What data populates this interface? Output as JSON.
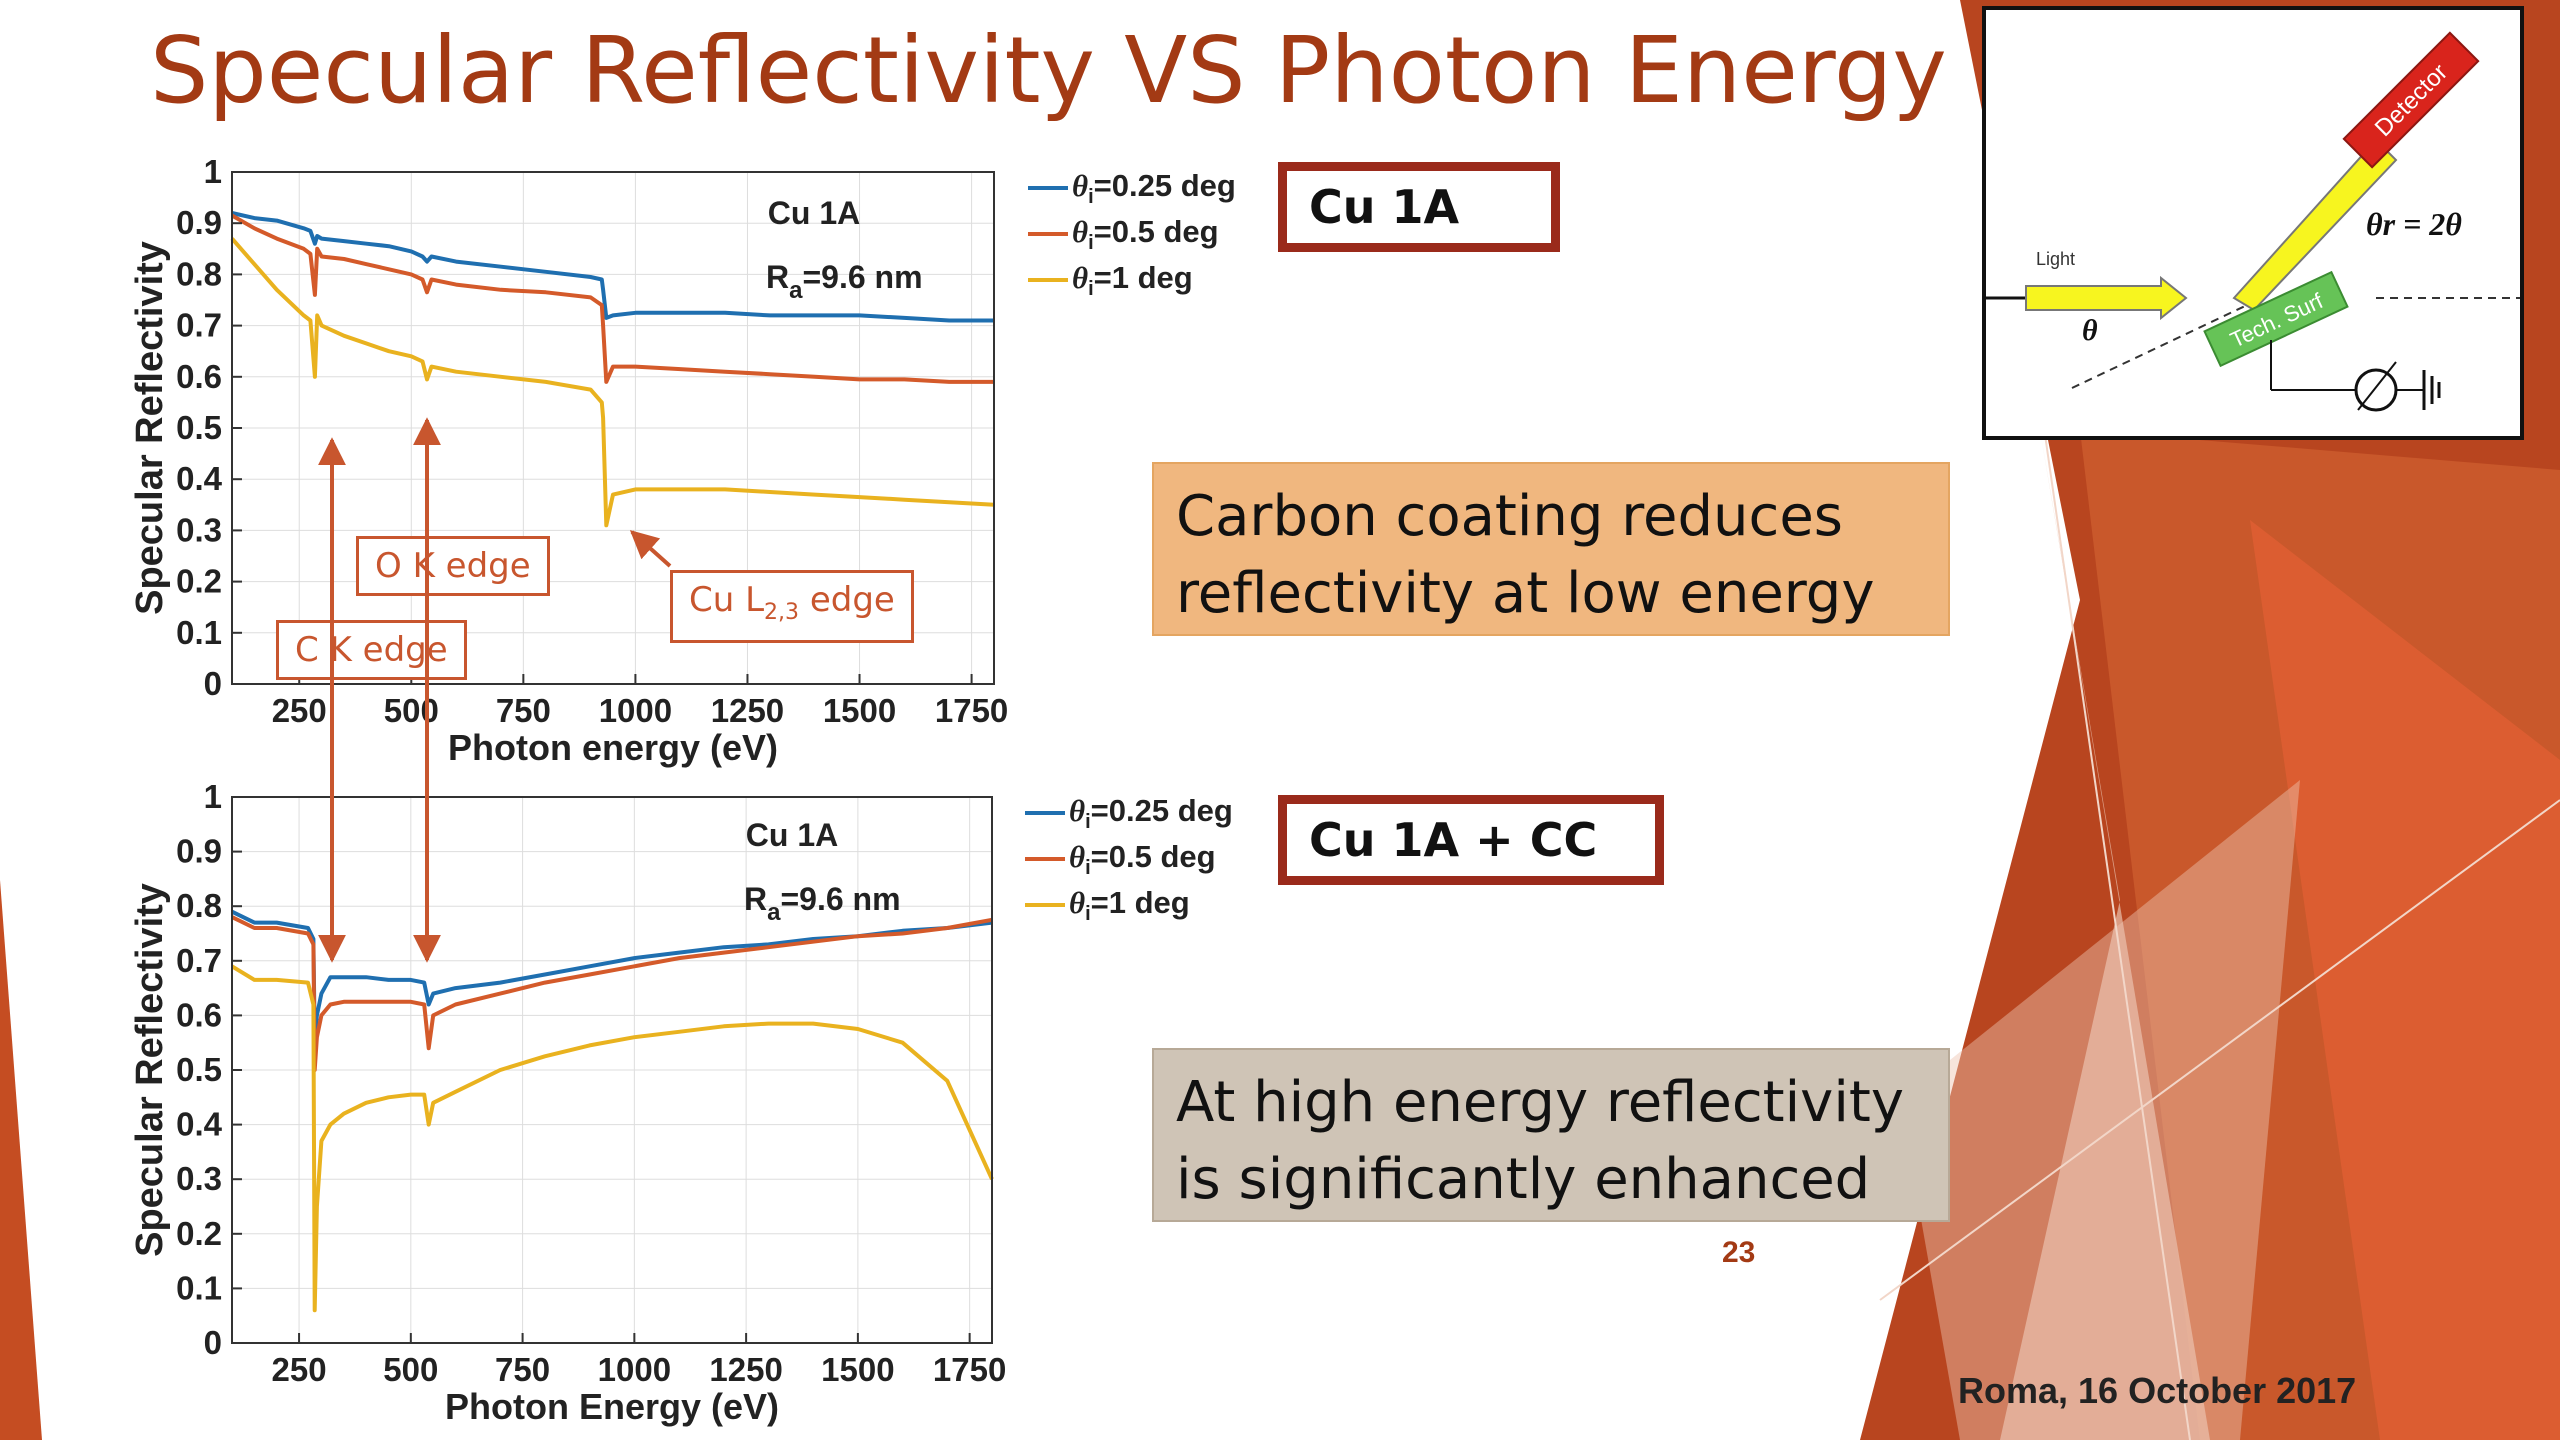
{
  "slide": {
    "title": "Specular Reflectivity VS Photon Energy",
    "page_number": "23",
    "footer_date": "Roma, 16 October 2017",
    "accent_color": "#a33a14"
  },
  "samples": {
    "top": "Cu 1A",
    "bottom": "Cu 1A + CC"
  },
  "callouts": {
    "top": {
      "line1": "Carbon coating reduces",
      "line2": "reflectivity at low energy",
      "color": "#f0b77f"
    },
    "bottom": {
      "line1": "At high energy reflectivity",
      "line2": "is significantly enhanced",
      "color": "#cfc4b6"
    }
  },
  "edge_labels": {
    "c_k": "C K edge",
    "o_k": "O K edge",
    "cu_l_main": "Cu L",
    "cu_l_sub": "2,3",
    "cu_l_suffix": " edge"
  },
  "diagram": {
    "light": "Light",
    "detector": "Detector",
    "surface": "Tech. Surf",
    "theta": "θ",
    "theta_r": "θr = 2θ"
  },
  "chart_data": [
    {
      "type": "line",
      "annotation_sample": "Cu 1A",
      "annotation_ra_main": "R",
      "annotation_ra_sub": "a",
      "annotation_ra_value": "=9.6 nm",
      "xlabel": "Photon energy (eV)",
      "ylabel": "Specular Reflectivity",
      "xlim": [
        100,
        1800
      ],
      "ylim": [
        0,
        1
      ],
      "xticks": [
        250,
        500,
        750,
        1000,
        1250,
        1500,
        1750
      ],
      "yticks": [
        0,
        0.1,
        0.2,
        0.3,
        0.4,
        0.5,
        0.6,
        0.7,
        0.8,
        0.9,
        1
      ],
      "grid": true,
      "legend": "outside-right",
      "x": [
        100,
        150,
        200,
        260,
        275,
        285,
        290,
        300,
        350,
        400,
        450,
        500,
        525,
        535,
        545,
        600,
        700,
        800,
        900,
        925,
        928,
        935,
        950,
        1000,
        1100,
        1200,
        1300,
        1400,
        1500,
        1600,
        1700,
        1800
      ],
      "series": [
        {
          "name_theta": "θ",
          "name_sub": "i",
          "name_rest": "=0.25 deg",
          "color": "#1f6fb0",
          "values": [
            0.92,
            0.91,
            0.905,
            0.89,
            0.885,
            0.86,
            0.875,
            0.87,
            0.865,
            0.86,
            0.855,
            0.845,
            0.835,
            0.825,
            0.835,
            0.825,
            0.815,
            0.805,
            0.795,
            0.79,
            0.77,
            0.715,
            0.72,
            0.725,
            0.725,
            0.725,
            0.72,
            0.72,
            0.72,
            0.715,
            0.71,
            0.71
          ]
        },
        {
          "name_theta": "θ",
          "name_sub": "i",
          "name_rest": "=0.5 deg",
          "color": "#d45a2a",
          "values": [
            0.915,
            0.89,
            0.87,
            0.85,
            0.84,
            0.76,
            0.85,
            0.835,
            0.83,
            0.82,
            0.81,
            0.8,
            0.79,
            0.765,
            0.79,
            0.78,
            0.77,
            0.765,
            0.755,
            0.74,
            0.7,
            0.59,
            0.62,
            0.62,
            0.615,
            0.61,
            0.605,
            0.6,
            0.595,
            0.595,
            0.59,
            0.59
          ]
        },
        {
          "name_theta": "θ",
          "name_sub": "i",
          "name_rest": "=1 deg",
          "color": "#e9b21f",
          "values": [
            0.87,
            0.82,
            0.77,
            0.72,
            0.71,
            0.6,
            0.72,
            0.7,
            0.68,
            0.665,
            0.65,
            0.64,
            0.63,
            0.595,
            0.62,
            0.61,
            0.6,
            0.59,
            0.575,
            0.55,
            0.52,
            0.31,
            0.37,
            0.38,
            0.38,
            0.38,
            0.375,
            0.37,
            0.365,
            0.36,
            0.355,
            0.35
          ]
        }
      ]
    },
    {
      "type": "line",
      "annotation_sample": "Cu 1A",
      "annotation_ra_main": "R",
      "annotation_ra_sub": "a",
      "annotation_ra_value": "=9.6 nm",
      "xlabel": "Photon Energy (eV)",
      "ylabel": "Specular Reflectivity",
      "xlim": [
        100,
        1800
      ],
      "ylim": [
        0,
        1
      ],
      "xticks": [
        250,
        500,
        750,
        1000,
        1250,
        1500,
        1750
      ],
      "yticks": [
        0,
        0.1,
        0.2,
        0.3,
        0.4,
        0.5,
        0.6,
        0.7,
        0.8,
        0.9,
        1
      ],
      "grid": true,
      "legend": "outside-right",
      "x": [
        100,
        150,
        200,
        270,
        282,
        285,
        290,
        300,
        320,
        350,
        400,
        450,
        500,
        530,
        540,
        550,
        600,
        700,
        800,
        900,
        1000,
        1100,
        1200,
        1300,
        1400,
        1500,
        1600,
        1700,
        1800
      ],
      "series": [
        {
          "name_theta": "θ",
          "name_sub": "i",
          "name_rest": "=0.25 deg",
          "color": "#1f6fb0",
          "values": [
            0.79,
            0.77,
            0.77,
            0.76,
            0.74,
            0.56,
            0.6,
            0.64,
            0.67,
            0.67,
            0.67,
            0.665,
            0.665,
            0.66,
            0.62,
            0.64,
            0.65,
            0.66,
            0.675,
            0.69,
            0.705,
            0.715,
            0.725,
            0.73,
            0.74,
            0.745,
            0.755,
            0.76,
            0.77
          ]
        },
        {
          "name_theta": "θ",
          "name_sub": "i",
          "name_rest": "=0.5 deg",
          "color": "#d45a2a",
          "values": [
            0.78,
            0.76,
            0.76,
            0.75,
            0.73,
            0.5,
            0.56,
            0.6,
            0.62,
            0.625,
            0.625,
            0.625,
            0.625,
            0.62,
            0.54,
            0.6,
            0.62,
            0.64,
            0.66,
            0.675,
            0.69,
            0.705,
            0.715,
            0.725,
            0.735,
            0.745,
            0.75,
            0.76,
            0.775
          ]
        },
        {
          "name_theta": "θ",
          "name_sub": "i",
          "name_rest": "=1 deg",
          "color": "#e9b21f",
          "values": [
            0.69,
            0.665,
            0.665,
            0.66,
            0.62,
            0.06,
            0.25,
            0.37,
            0.4,
            0.42,
            0.44,
            0.45,
            0.455,
            0.455,
            0.4,
            0.44,
            0.46,
            0.5,
            0.525,
            0.545,
            0.56,
            0.57,
            0.58,
            0.585,
            0.585,
            0.575,
            0.55,
            0.48,
            0.3
          ]
        }
      ]
    }
  ]
}
